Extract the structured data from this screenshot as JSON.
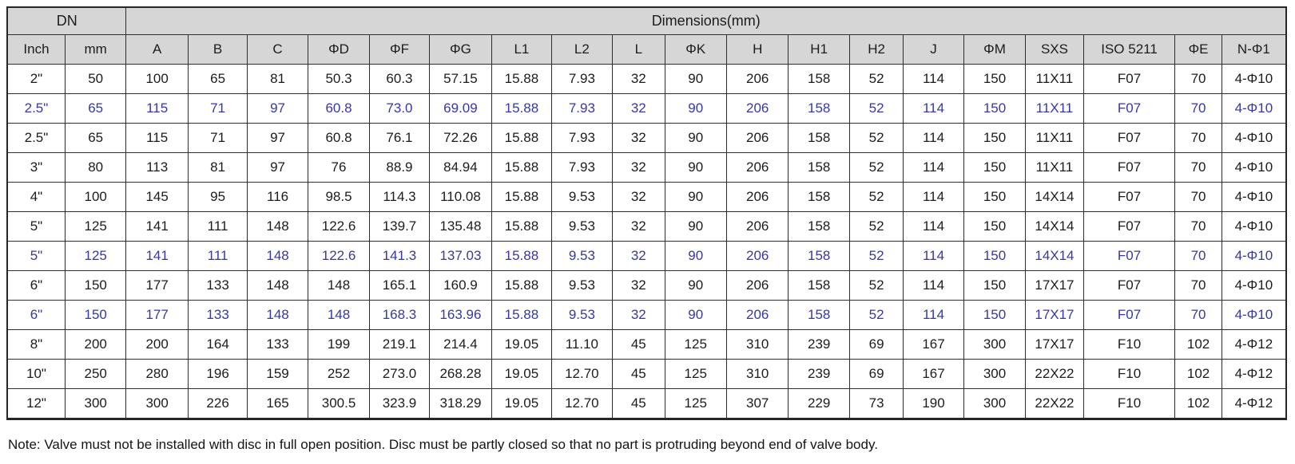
{
  "table": {
    "group_headers": [
      {
        "label": "DN",
        "colspan": 2
      },
      {
        "label": "Dimensions(mm)",
        "colspan": 19
      }
    ],
    "columns": [
      "Inch",
      "mm",
      "A",
      "B",
      "C",
      "ΦD",
      "ΦF",
      "ΦG",
      "L1",
      "L2",
      "L",
      "ΦK",
      "H",
      "H1",
      "H2",
      "J",
      "ΦM",
      "SXS",
      "ISO 5211",
      "ΦE",
      "N-Φ1"
    ],
    "rows": [
      {
        "highlighted": false,
        "cells": [
          "2\"",
          "50",
          "100",
          "65",
          "81",
          "50.3",
          "60.3",
          "57.15",
          "15.88",
          "7.93",
          "32",
          "90",
          "206",
          "158",
          "52",
          "114",
          "150",
          "11X11",
          "F07",
          "70",
          "4-Φ10"
        ]
      },
      {
        "highlighted": true,
        "cells": [
          "2.5\"",
          "65",
          "115",
          "71",
          "97",
          "60.8",
          "73.0",
          "69.09",
          "15.88",
          "7.93",
          "32",
          "90",
          "206",
          "158",
          "52",
          "114",
          "150",
          "11X11",
          "F07",
          "70",
          "4-Φ10"
        ]
      },
      {
        "highlighted": false,
        "cells": [
          "2.5\"",
          "65",
          "115",
          "71",
          "97",
          "60.8",
          "76.1",
          "72.26",
          "15.88",
          "7.93",
          "32",
          "90",
          "206",
          "158",
          "52",
          "114",
          "150",
          "11X11",
          "F07",
          "70",
          "4-Φ10"
        ]
      },
      {
        "highlighted": false,
        "cells": [
          "3\"",
          "80",
          "113",
          "81",
          "97",
          "76",
          "88.9",
          "84.94",
          "15.88",
          "7.93",
          "32",
          "90",
          "206",
          "158",
          "52",
          "114",
          "150",
          "11X11",
          "F07",
          "70",
          "4-Φ10"
        ]
      },
      {
        "highlighted": false,
        "cells": [
          "4\"",
          "100",
          "145",
          "95",
          "116",
          "98.5",
          "114.3",
          "110.08",
          "15.88",
          "9.53",
          "32",
          "90",
          "206",
          "158",
          "52",
          "114",
          "150",
          "14X14",
          "F07",
          "70",
          "4-Φ10"
        ]
      },
      {
        "highlighted": false,
        "cells": [
          "5\"",
          "125",
          "141",
          "111",
          "148",
          "122.6",
          "139.7",
          "135.48",
          "15.88",
          "9.53",
          "32",
          "90",
          "206",
          "158",
          "52",
          "114",
          "150",
          "14X14",
          "F07",
          "70",
          "4-Φ10"
        ]
      },
      {
        "highlighted": true,
        "cells": [
          "5\"",
          "125",
          "141",
          "111",
          "148",
          "122.6",
          "141.3",
          "137.03",
          "15.88",
          "9.53",
          "32",
          "90",
          "206",
          "158",
          "52",
          "114",
          "150",
          "14X14",
          "F07",
          "70",
          "4-Φ10"
        ]
      },
      {
        "highlighted": false,
        "cells": [
          "6\"",
          "150",
          "177",
          "133",
          "148",
          "148",
          "165.1",
          "160.9",
          "15.88",
          "9.53",
          "32",
          "90",
          "206",
          "158",
          "52",
          "114",
          "150",
          "17X17",
          "F07",
          "70",
          "4-Φ10"
        ]
      },
      {
        "highlighted": true,
        "cells": [
          "6\"",
          "150",
          "177",
          "133",
          "148",
          "148",
          "168.3",
          "163.96",
          "15.88",
          "9.53",
          "32",
          "90",
          "206",
          "158",
          "52",
          "114",
          "150",
          "17X17",
          "F07",
          "70",
          "4-Φ10"
        ]
      },
      {
        "highlighted": false,
        "cells": [
          "8\"",
          "200",
          "200",
          "164",
          "133",
          "199",
          "219.1",
          "214.4",
          "19.05",
          "11.10",
          "45",
          "125",
          "310",
          "239",
          "69",
          "167",
          "300",
          "17X17",
          "F10",
          "102",
          "4-Φ12"
        ]
      },
      {
        "highlighted": false,
        "cells": [
          "10\"",
          "250",
          "280",
          "196",
          "159",
          "252",
          "273.0",
          "268.28",
          "19.05",
          "12.70",
          "45",
          "125",
          "310",
          "239",
          "69",
          "167",
          "300",
          "22X22",
          "F10",
          "102",
          "4-Φ12"
        ]
      },
      {
        "highlighted": false,
        "cells": [
          "12\"",
          "300",
          "300",
          "226",
          "165",
          "300.5",
          "323.9",
          "318.29",
          "19.05",
          "12.70",
          "45",
          "125",
          "307",
          "229",
          "73",
          "190",
          "300",
          "22X22",
          "F10",
          "102",
          "4-Φ12"
        ]
      }
    ]
  },
  "note": "Note: Valve must not be installed with disc in full open position. Disc must be partly closed so that no part is protruding beyond end of valve body.",
  "colors": {
    "highlight_text": "#3737a6",
    "header_bg": "#d6d6d6",
    "border": "#2e2e2e"
  }
}
